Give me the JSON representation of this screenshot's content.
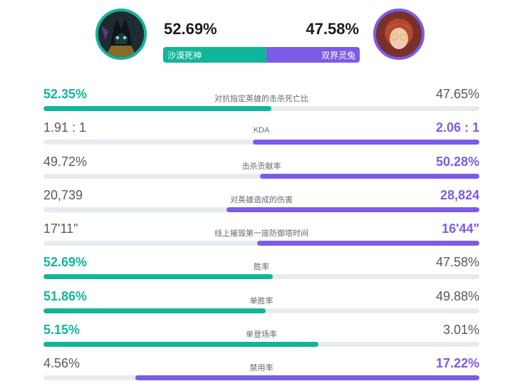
{
  "colors": {
    "left_accent": "#12b49a",
    "right_accent": "#7b5ce6"
  },
  "header": {
    "left": {
      "hero": "沙漠死神",
      "winrate": "52.69%",
      "share": 52.69,
      "avatar_icon": "anubis-hero-portrait"
    },
    "right": {
      "hero": "双界灵兔",
      "winrate": "47.58%",
      "share": 47.58,
      "avatar_icon": "gwen-hero-portrait"
    }
  },
  "stats": [
    {
      "label": "对抗指定英雄的击杀死亡比",
      "left": "52.35%",
      "right": "47.65%",
      "winner": "left",
      "fill": 52.35
    },
    {
      "label": "KDA",
      "left": "1.91 : 1",
      "right": "2.06 : 1",
      "winner": "right",
      "fill": 52
    },
    {
      "label": "击杀贡献率",
      "left": "49.72%",
      "right": "50.28%",
      "winner": "right",
      "fill": 50.28
    },
    {
      "label": "对英雄造成的伤害",
      "left": "20,739",
      "right": "28,824",
      "winner": "right",
      "fill": 58
    },
    {
      "label": "线上摧毁第一座防御塔时间",
      "left": "17'11\"",
      "right": "16'44\"",
      "winner": "right",
      "fill": 51
    },
    {
      "label": "胜率",
      "left": "52.69%",
      "right": "47.58%",
      "winner": "left",
      "fill": 52.69
    },
    {
      "label": "单胜率",
      "left": "51.86%",
      "right": "49.88%",
      "winner": "left",
      "fill": 51
    },
    {
      "label": "单登场率",
      "left": "5.15%",
      "right": "3.01%",
      "winner": "left",
      "fill": 63
    },
    {
      "label": "禁用率",
      "left": "4.56%",
      "right": "17.22%",
      "winner": "right",
      "fill": 79
    }
  ]
}
